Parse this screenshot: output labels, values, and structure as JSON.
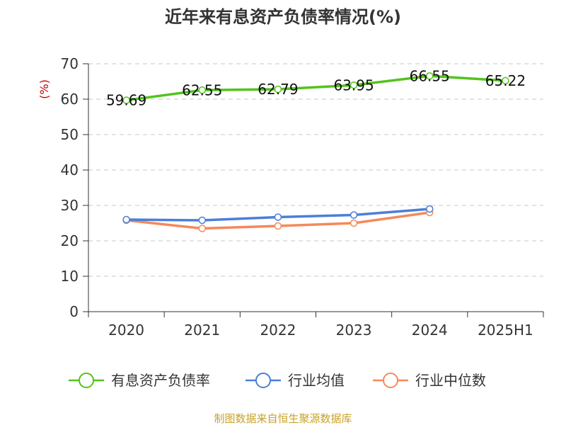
{
  "chart_data": {
    "type": "line",
    "title": "近年来有息资产负债率情况(%)",
    "y_unit": "(%)",
    "categories": [
      "2020",
      "2021",
      "2022",
      "2023",
      "2024",
      "2025H1"
    ],
    "ylim": [
      0,
      70
    ],
    "y_ticks": [
      0,
      10,
      20,
      30,
      40,
      50,
      60,
      70
    ],
    "grid": true,
    "legend_position": "bottom",
    "series": [
      {
        "name": "有息资产负债率",
        "color": "#52c41a",
        "values": [
          59.69,
          62.55,
          62.79,
          63.95,
          66.55,
          65.22
        ],
        "labels": [
          "59.69",
          "62.55",
          "62.79",
          "63.95",
          "66.55",
          "65.22"
        ]
      },
      {
        "name": "行业均值",
        "color": "#4a7fd9",
        "values": [
          26.0,
          25.8,
          26.7,
          27.3,
          29.0,
          null
        ]
      },
      {
        "name": "行业中位数",
        "color": "#f5895a",
        "values": [
          25.8,
          23.5,
          24.2,
          25.0,
          28.0,
          null
        ]
      }
    ],
    "source": "制图数据来自恒生聚源数据库"
  }
}
